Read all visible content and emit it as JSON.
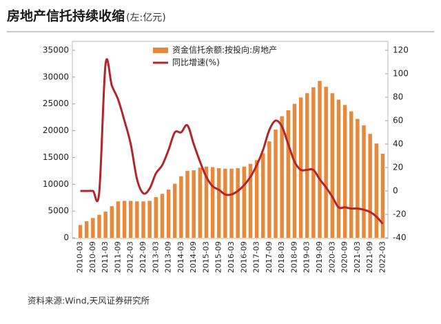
{
  "chart_data": {
    "type": "bar_line",
    "title": "房地产信托持续收缩",
    "subtitle": "(左:亿元)",
    "source": "资料来源:Wind,天风证券研究所",
    "categories": [
      "2010-03",
      null,
      "2010-09",
      null,
      "2011-03",
      null,
      "2011-09",
      null,
      "2012-03",
      null,
      "2012-09",
      null,
      "2013-03",
      null,
      "2013-09",
      null,
      "2014-03",
      null,
      "2014-09",
      null,
      "2015-03",
      null,
      "2015-09",
      null,
      "2016-03",
      null,
      "2016-09",
      null,
      "2017-03",
      null,
      "2017-09",
      null,
      "2018-03",
      null,
      "2018-09",
      null,
      "2019-03",
      null,
      "2019-09",
      null,
      "2020-03",
      null,
      "2020-09",
      null,
      "2021-03",
      null,
      "2021-09",
      null,
      "2022-03"
    ],
    "series": [
      {
        "name": "资金信托余额:按投向:房地产",
        "type": "bar",
        "color": "#e8883a",
        "axis": "y",
        "values": [
          2400,
          3100,
          3700,
          4300,
          4900,
          5900,
          6800,
          6900,
          6900,
          6800,
          6800,
          6900,
          7600,
          8200,
          9000,
          10100,
          11500,
          12500,
          12600,
          13100,
          13300,
          13200,
          13000,
          12900,
          12900,
          13000,
          13300,
          13800,
          14500,
          15800,
          18000,
          20200,
          22700,
          23800,
          25000,
          26200,
          27000,
          28100,
          29300,
          28200,
          27000,
          25800,
          24800,
          23600,
          22200,
          21000,
          19400,
          17600,
          15700
        ]
      },
      {
        "name": "同比增速(%)",
        "type": "line",
        "color": "#b3242b",
        "axis": "y2",
        "values": [
          0,
          0,
          0,
          -1,
          108,
          90,
          78,
          60,
          40,
          10,
          -2,
          2,
          15,
          22,
          35,
          50,
          50,
          56,
          40,
          25,
          12,
          4,
          1,
          -3,
          -3,
          0,
          5,
          12,
          22,
          35,
          52,
          60,
          55,
          40,
          25,
          18,
          18,
          18,
          10,
          3,
          -5,
          -14,
          -14,
          -15,
          -15,
          -16,
          -18,
          -22,
          -28
        ]
      }
    ],
    "ylim": [
      0,
      35000
    ],
    "yticks": [
      0,
      5000,
      10000,
      15000,
      20000,
      25000,
      30000,
      35000
    ],
    "y2lim": [
      -40,
      120
    ],
    "y2ticks": [
      -40,
      -20,
      0,
      20,
      40,
      60,
      80,
      100,
      120
    ],
    "legend": "top"
  }
}
